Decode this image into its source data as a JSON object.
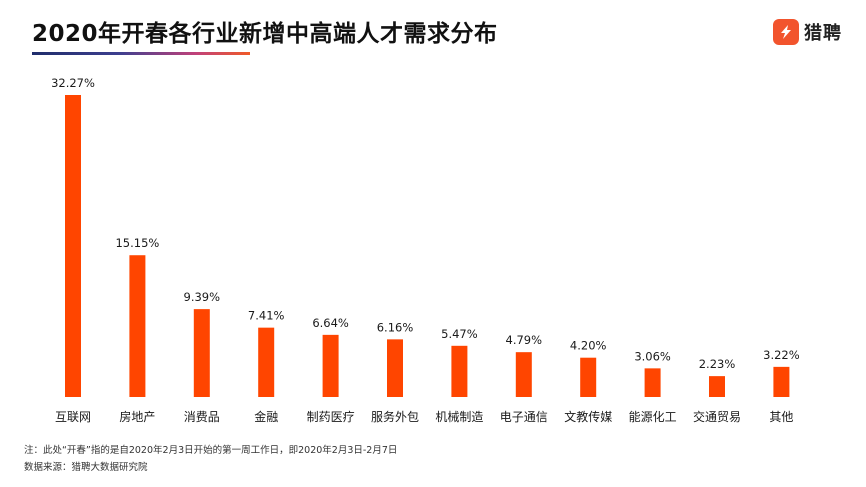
{
  "header": {
    "title": "2020年开春各行业新增中高端人才需求分布",
    "brand_name": "猎聘"
  },
  "colors": {
    "bar": "#ff4500",
    "brand": "#f2542d"
  },
  "chart_data": {
    "type": "bar",
    "categories": [
      "互联网",
      "房地产",
      "消费品",
      "金融",
      "制药医疗",
      "服务外包",
      "机械制造",
      "电子通信",
      "文教传媒",
      "能源化工",
      "交通贸易",
      "其他"
    ],
    "values": [
      32.27,
      15.15,
      9.39,
      7.41,
      6.64,
      6.16,
      5.47,
      4.79,
      4.2,
      3.06,
      2.23,
      3.22
    ],
    "value_labels": [
      "32.27%",
      "15.15%",
      "9.39%",
      "7.41%",
      "6.64%",
      "6.16%",
      "5.47%",
      "4.79%",
      "4.20%",
      "3.06%",
      "2.23%",
      "3.22%"
    ],
    "title": "2020年开春各行业新增中高端人才需求分布",
    "xlabel": "",
    "ylabel": "",
    "ylim": [
      0,
      32.27
    ],
    "grid": false,
    "legend": "none"
  },
  "footer": {
    "note": "注：此处“开春”指的是自2020年2月3日开始的第一周工作日，即2020年2月3日-2月7日",
    "source": "数据来源：猎聘大数据研究院"
  }
}
